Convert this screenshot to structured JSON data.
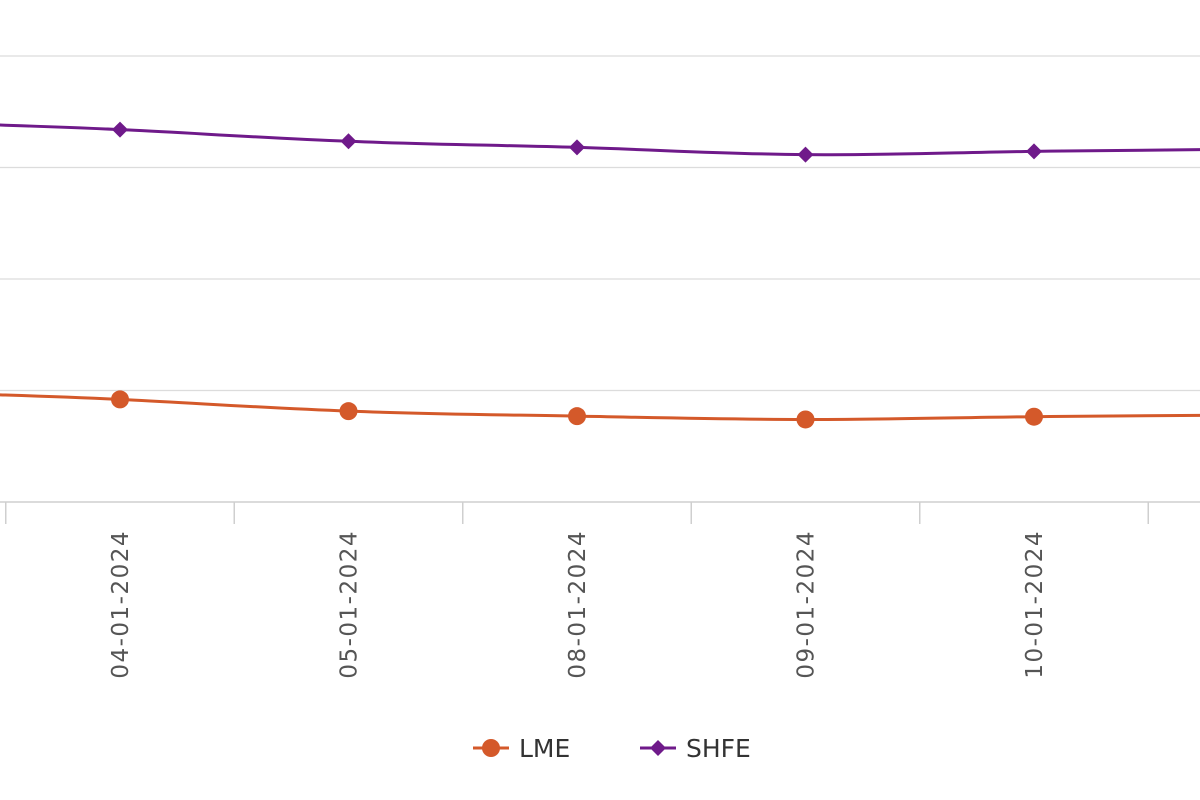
{
  "chart_data": {
    "type": "line",
    "x": [
      "04-01-2024",
      "05-01-2024",
      "08-01-2024",
      "09-01-2024",
      "10-01-2024"
    ],
    "series": [
      {
        "name": "LME",
        "color": "#d4592a",
        "marker": "circle",
        "values": [
          8420,
          8315,
          8270,
          8240,
          8265
        ]
      },
      {
        "name": "SHFE",
        "color": "#6f1a8a",
        "marker": "diamond",
        "values": [
          10840,
          10735,
          10680,
          10615,
          10645
        ]
      }
    ],
    "ylim": [
      7500,
      11500
    ],
    "grid": true,
    "legend_position": "bottom-center"
  }
}
